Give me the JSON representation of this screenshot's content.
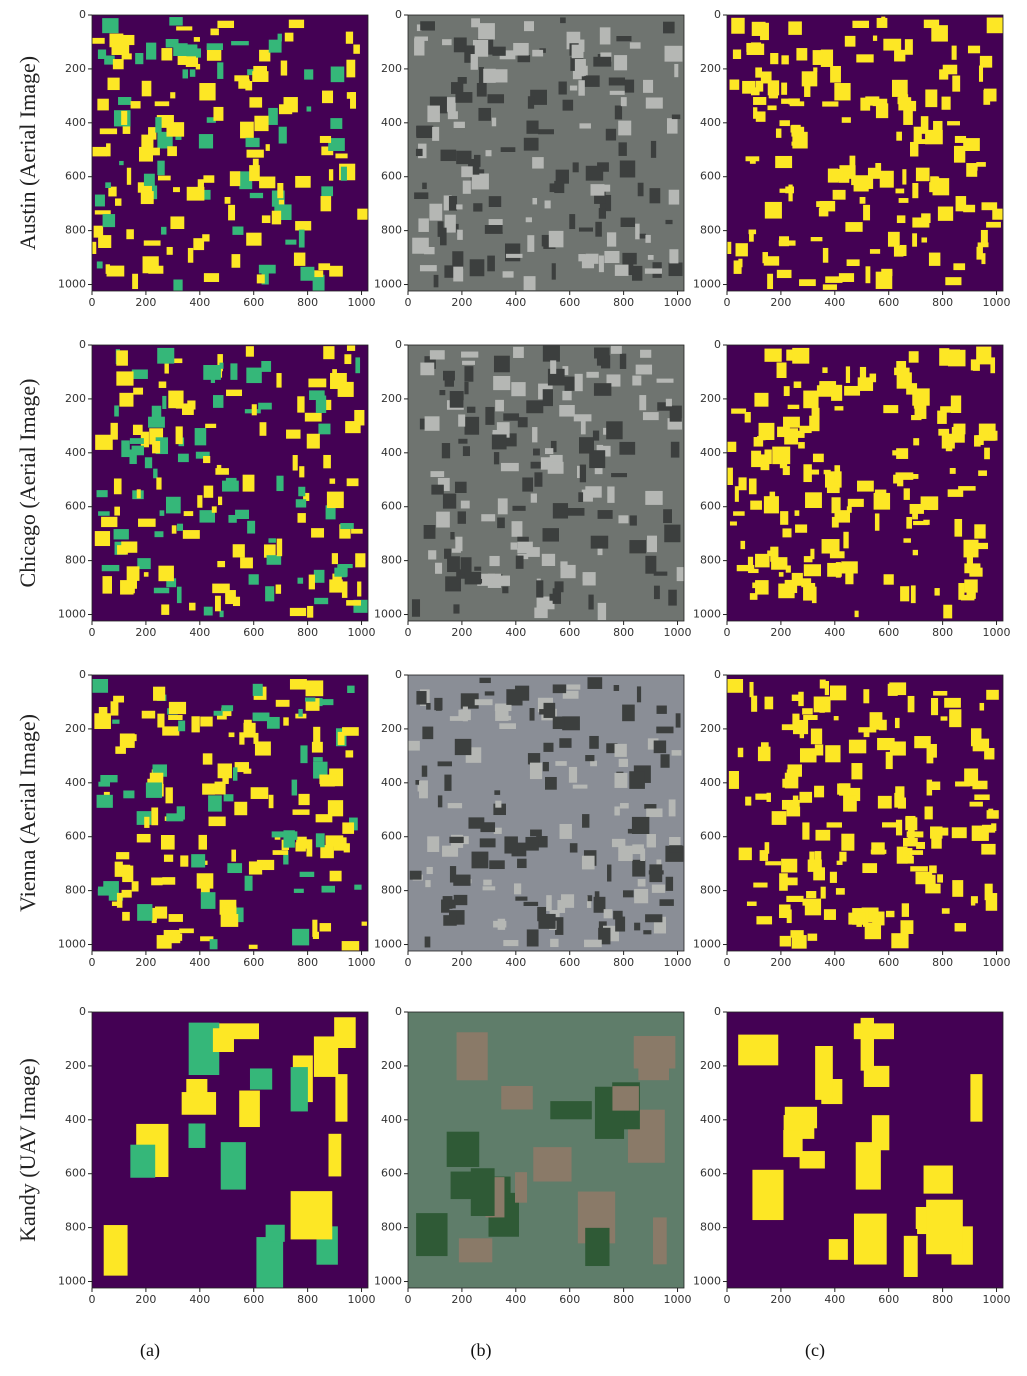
{
  "figure": {
    "rows": [
      {
        "label": "Austin (Aerial Image)"
      },
      {
        "label": "Chicago (Aerial Image)"
      },
      {
        "label": "Vienna (Aerial Image)"
      },
      {
        "label": "Kandy (UAV Image)"
      }
    ],
    "columns": [
      "(a)",
      "(b)",
      "(c)"
    ],
    "axes": {
      "xlim": [
        0,
        1024
      ],
      "ylim": [
        1024,
        0
      ],
      "xticks": [
        0,
        200,
        400,
        600,
        800,
        1000
      ],
      "yticks": [
        0,
        200,
        400,
        600,
        800,
        1000
      ]
    }
  }
}
